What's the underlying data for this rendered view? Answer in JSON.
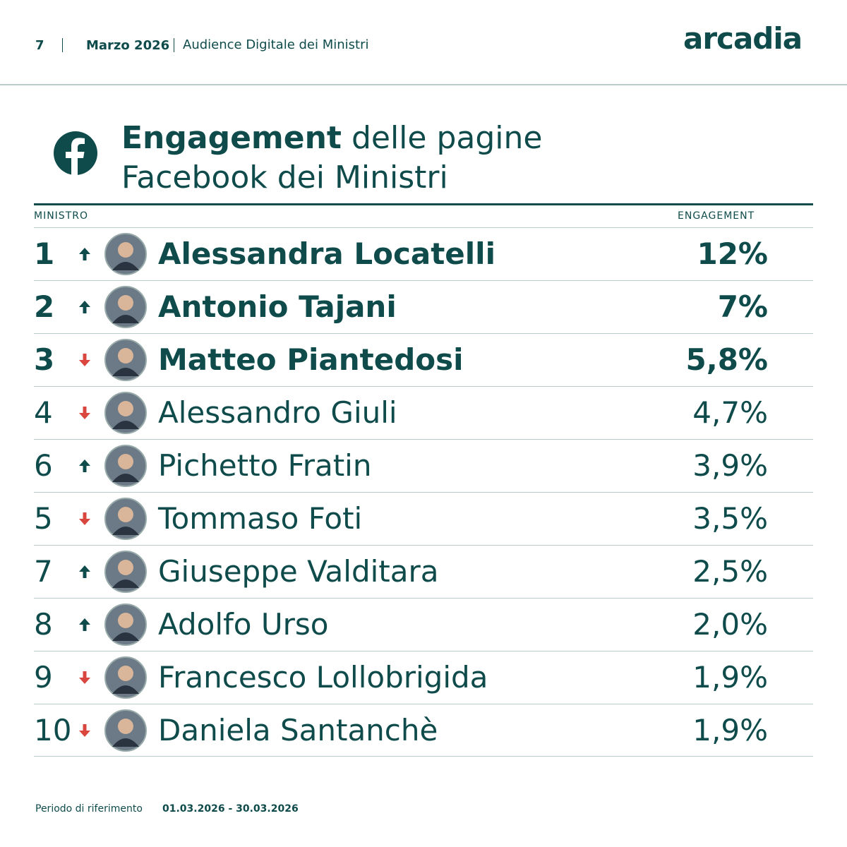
{
  "header": {
    "page": "7",
    "month": "Marzo 2026",
    "subtitle": "Audience Digitale dei Ministri",
    "logo": "arcadia"
  },
  "title": {
    "bold": "Engagement",
    "rest": "delle pagine",
    "line2": "Facebook dei Ministri"
  },
  "table": {
    "columns": [
      "MINISTRO",
      "ENGAGEMENT"
    ],
    "rows": [
      {
        "rank": "1",
        "trend": "up",
        "name": "Alessandra Locatelli",
        "engagement": "12%",
        "bold": true
      },
      {
        "rank": "2",
        "trend": "up",
        "name": "Antonio Tajani",
        "engagement": "7%",
        "bold": true
      },
      {
        "rank": "3",
        "trend": "down",
        "name": "Matteo Piantedosi",
        "engagement": "5,8%",
        "bold": true
      },
      {
        "rank": "4",
        "trend": "down",
        "name": "Alessandro Giuli",
        "engagement": "4,7%",
        "bold": false
      },
      {
        "rank": "6",
        "trend": "up",
        "name": "Pichetto Fratin",
        "engagement": "3,9%",
        "bold": false
      },
      {
        "rank": "5",
        "trend": "down",
        "name": "Tommaso Foti",
        "engagement": "3,5%",
        "bold": false
      },
      {
        "rank": "7",
        "trend": "up",
        "name": "Giuseppe Valditara",
        "engagement": "2,5%",
        "bold": false
      },
      {
        "rank": "8",
        "trend": "up",
        "name": "Adolfo Urso",
        "engagement": "2,0%",
        "bold": false
      },
      {
        "rank": "9",
        "trend": "down",
        "name": "Francesco Lollobrigida",
        "engagement": "1,9%",
        "bold": false
      },
      {
        "rank": "10",
        "trend": "down",
        "name": "Daniela Santanchè",
        "engagement": "1,9%",
        "bold": false
      }
    ]
  },
  "footer": {
    "label": "Periodo di riferimento",
    "period": "01.03.2026 - 30.03.2026"
  }
}
